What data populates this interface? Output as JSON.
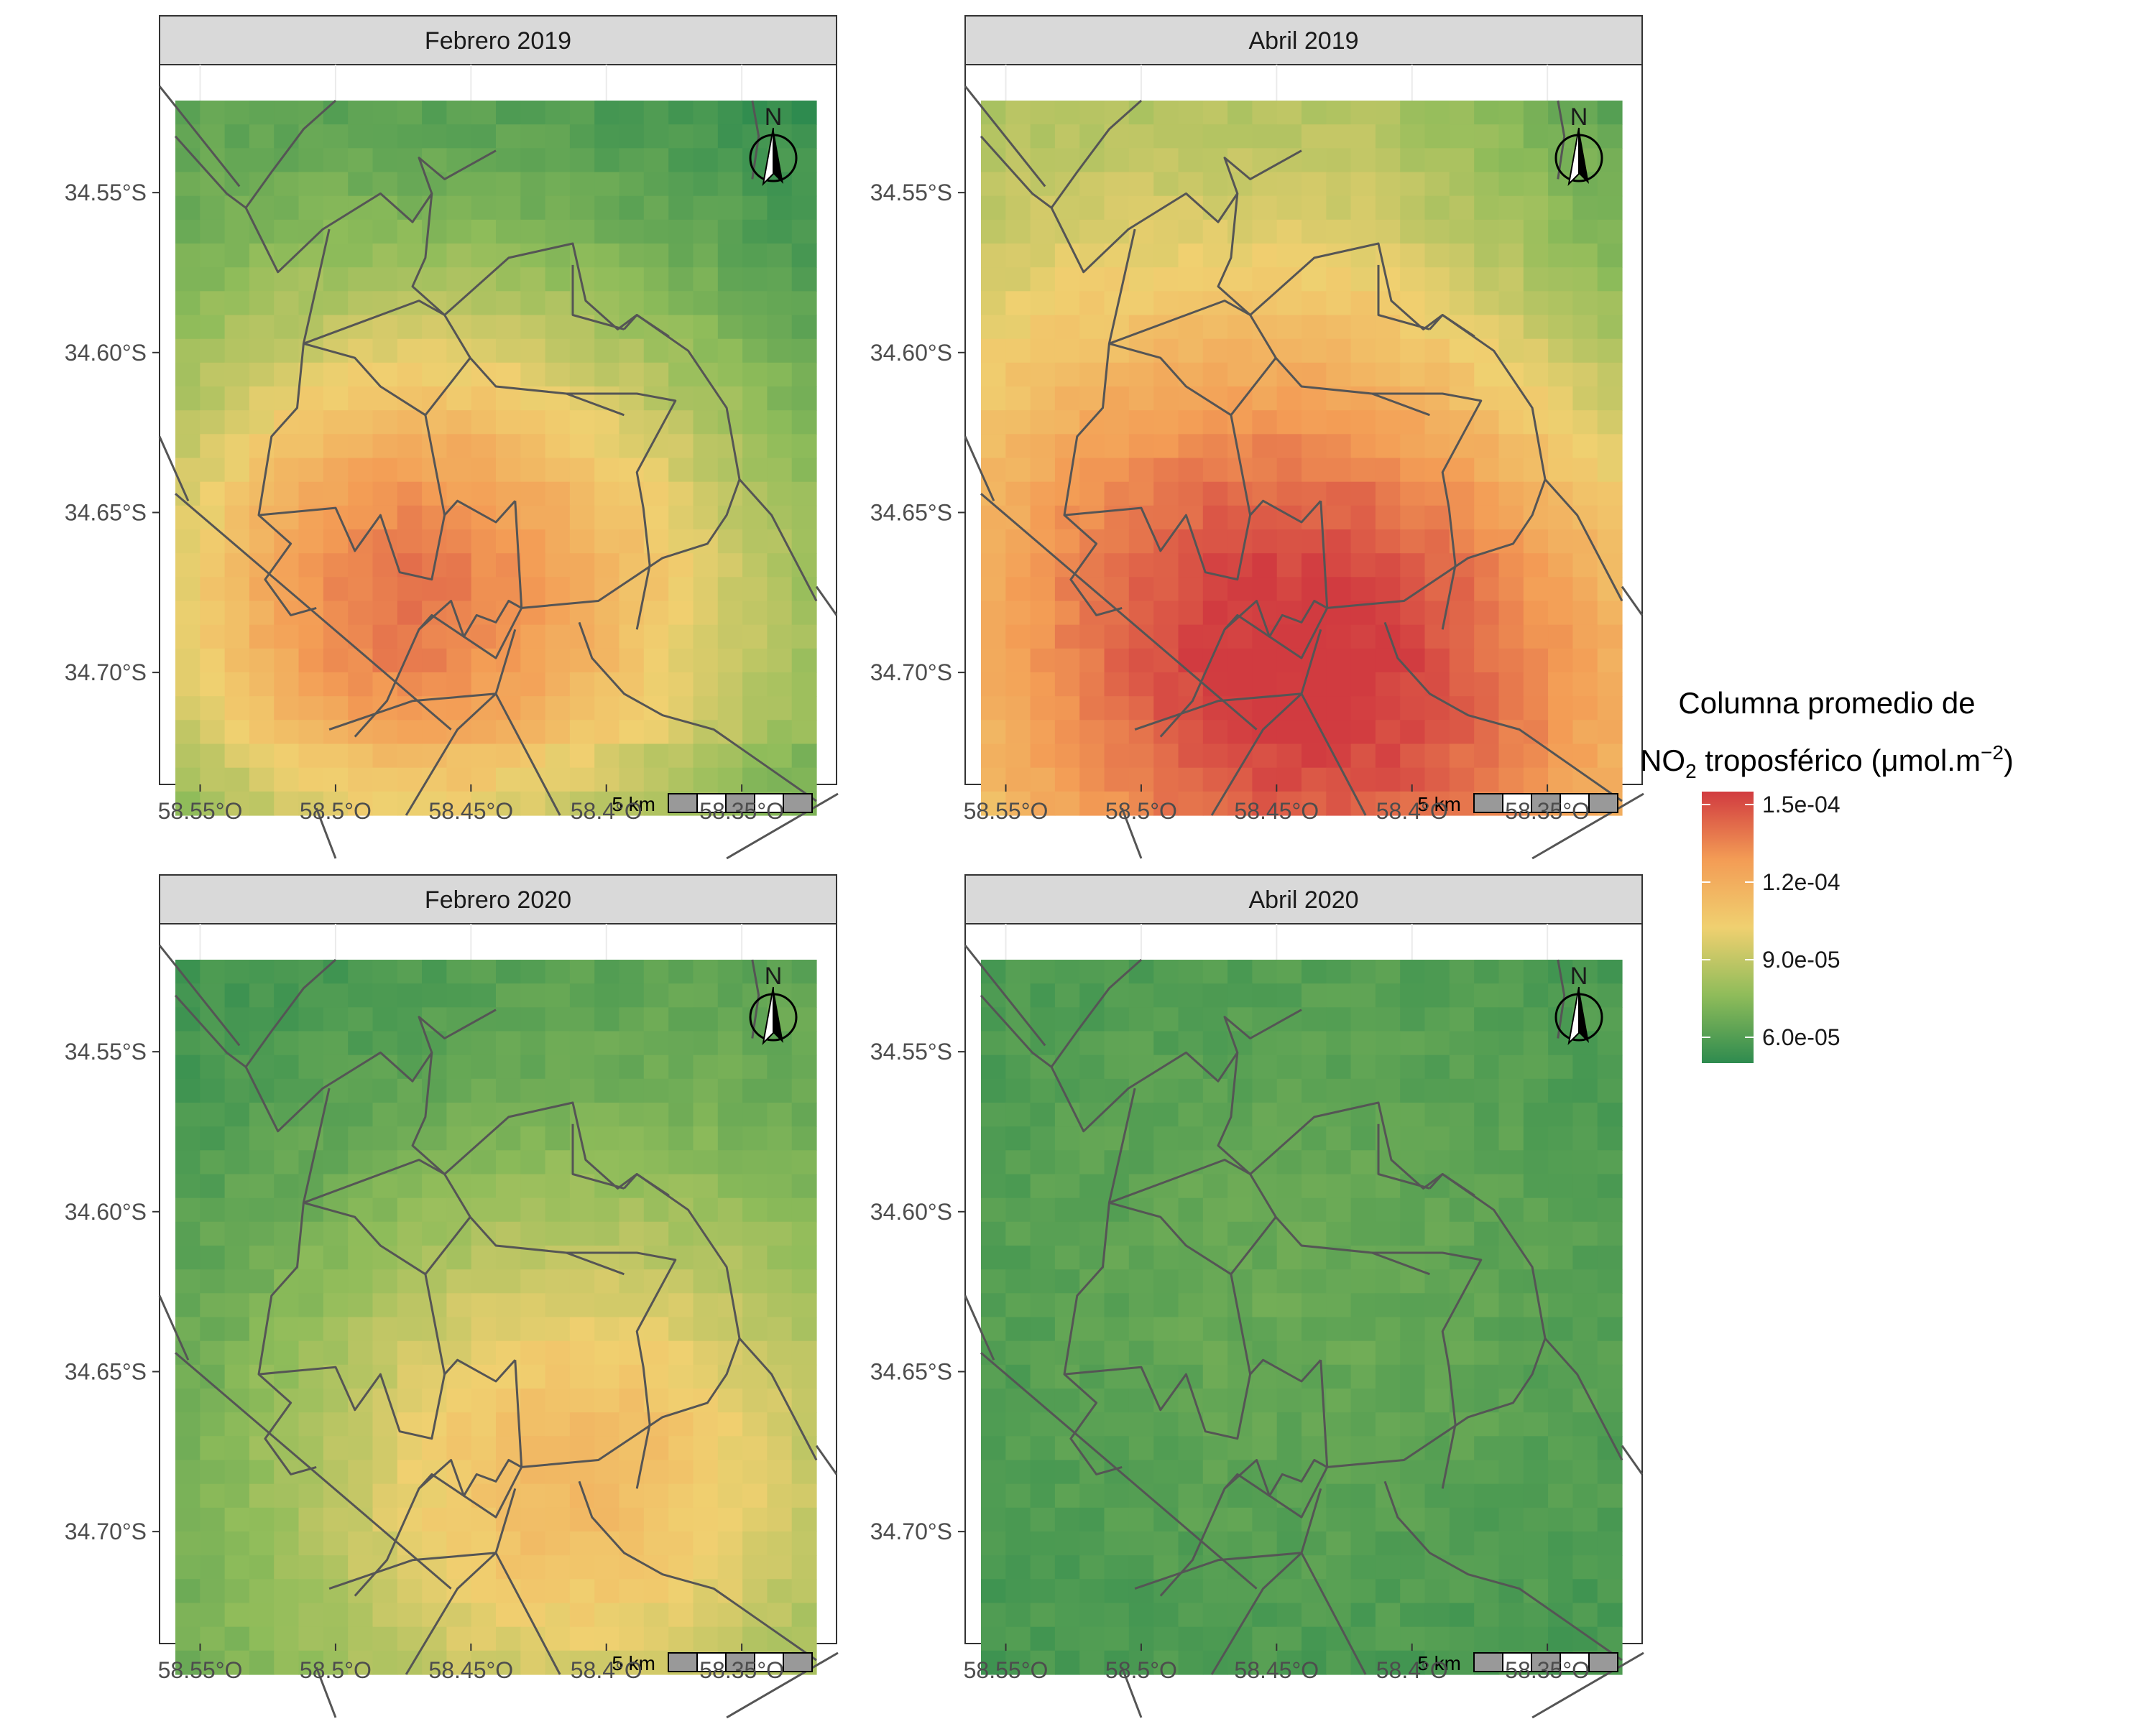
{
  "panels": [
    {
      "title": "Febrero 2019",
      "scenario": "feb2019"
    },
    {
      "title": "Abril 2019",
      "scenario": "abr2019"
    },
    {
      "title": "Febrero 2020",
      "scenario": "feb2020"
    },
    {
      "title": "Abril 2020",
      "scenario": "abr2020"
    }
  ],
  "axes": {
    "x_ticks": [
      "58.55°O",
      "58.5°O",
      "58.45°O",
      "58.4°O",
      "58.35°O"
    ],
    "y_ticks": [
      "34.55°S",
      "34.60°S",
      "34.65°S",
      "34.70°S"
    ],
    "x_values": [
      -58.55,
      -58.5,
      -58.45,
      -58.4,
      -58.35
    ],
    "y_values": [
      -34.55,
      -34.6,
      -34.65,
      -34.7
    ],
    "lon_range": [
      -58.565,
      -58.315
    ],
    "lat_range": [
      -34.735,
      -34.51
    ]
  },
  "legend": {
    "title_line1": "Columna promedio de",
    "title_line2_prefix": "NO",
    "title_line2_sub": "2",
    "title_line2_mid": " troposférico (μmol.m",
    "title_line2_sup": "−2",
    "title_line2_end": ")",
    "labels": [
      "1.5e-04",
      "1.2e-04",
      "9.0e-05",
      "6.0e-05"
    ],
    "values": [
      0.00015,
      0.00012,
      9e-05,
      6e-05
    ],
    "range": [
      5e-05,
      0.000155
    ]
  },
  "colors": {
    "low": "#2e8b4f",
    "mid_low": "#8fbc5a",
    "mid": "#f0d070",
    "mid_high": "#f39c55",
    "high": "#d13b40",
    "strip_bg": "#d9d9d9",
    "boundary": "#555555"
  },
  "north_arrow_label": "N",
  "scale_bar_label": "5 km",
  "chart_data": {
    "type": "heatmap",
    "variable": "NO2 tropospheric column",
    "panels": [
      {
        "title": "Febrero 2019",
        "min_value": 5.5e-05,
        "max_value": 0.000135
      },
      {
        "title": "Abril 2019",
        "min_value": 6.5e-05,
        "max_value": 0.00015
      },
      {
        "title": "Febrero 2020",
        "min_value": 6e-05,
        "max_value": 0.000115
      },
      {
        "title": "Abril 2020",
        "min_value": 5.5e-05,
        "max_value": 7e-05
      }
    ],
    "xlabel": "",
    "ylabel": "",
    "xlim": [
      -58.565,
      -58.315
    ],
    "ylim": [
      -34.735,
      -34.51
    ]
  }
}
